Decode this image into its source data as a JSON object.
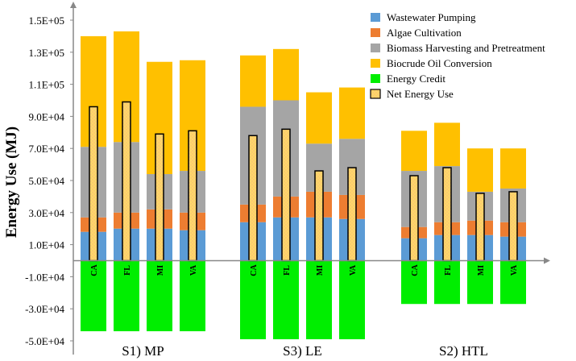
{
  "chart_data": {
    "type": "bar",
    "ylabel": "Energy Use (MJ)",
    "ylim": [
      -50000,
      150000
    ],
    "y_ticks": [
      "-5.0E+04",
      "-3.0E+04",
      "-1.0E+04",
      "1.0E+04",
      "3.0E+04",
      "5.0E+04",
      "7.0E+04",
      "9.0E+04",
      "1.1E+05",
      "1.3E+05",
      "1.5E+05"
    ],
    "tick_values": [
      -50000,
      -30000,
      -10000,
      10000,
      30000,
      50000,
      70000,
      90000,
      110000,
      130000,
      150000
    ],
    "stacked": true,
    "legend_position": "top-right",
    "colors": {
      "wastewater": "#5b9bd5",
      "algae": "#ed7d31",
      "harvest": "#a5a5a5",
      "biocrude": "#ffc000",
      "credit": "#00ee00",
      "net_fill": "#ffd966",
      "net_border": "#000000"
    },
    "legend": [
      {
        "key": "wastewater",
        "label": "Wastewater Pumping"
      },
      {
        "key": "algae",
        "label": "Algae Cultivation"
      },
      {
        "key": "harvest",
        "label": "Biomass Harvesting and Pretreatment"
      },
      {
        "key": "biocrude",
        "label": "Biocrude Oil Conversion"
      },
      {
        "key": "credit",
        "label": "Energy Credit"
      },
      {
        "key": "net",
        "label": "Net Energy Use"
      }
    ],
    "groups": [
      {
        "label": "S1) MP",
        "bars": [
          {
            "site": "CA",
            "wastewater": 18000,
            "algae": 9000,
            "harvest": 44000,
            "biocrude": 69000,
            "credit": -44000,
            "net": 96000
          },
          {
            "site": "FL",
            "wastewater": 20000,
            "algae": 10000,
            "harvest": 44000,
            "biocrude": 69000,
            "credit": -44000,
            "net": 99000
          },
          {
            "site": "MI",
            "wastewater": 20000,
            "algae": 12000,
            "harvest": 22000,
            "biocrude": 70000,
            "credit": -44000,
            "net": 79000
          },
          {
            "site": "VA",
            "wastewater": 19000,
            "algae": 11000,
            "harvest": 26000,
            "biocrude": 69000,
            "credit": -44000,
            "net": 81000
          }
        ]
      },
      {
        "label": "S3) LE",
        "bars": [
          {
            "site": "CA",
            "wastewater": 24000,
            "algae": 11000,
            "harvest": 61000,
            "biocrude": 32000,
            "credit": -49000,
            "net": 78000
          },
          {
            "site": "FL",
            "wastewater": 27000,
            "algae": 13000,
            "harvest": 60000,
            "biocrude": 32000,
            "credit": -49000,
            "net": 82000
          },
          {
            "site": "MI",
            "wastewater": 27000,
            "algae": 16000,
            "harvest": 30000,
            "biocrude": 32000,
            "credit": -49000,
            "net": 56000
          },
          {
            "site": "VA",
            "wastewater": 26000,
            "algae": 15000,
            "harvest": 35000,
            "biocrude": 32000,
            "credit": -49000,
            "net": 58000
          }
        ]
      },
      {
        "label": "S2) HTL",
        "bars": [
          {
            "site": "CA",
            "wastewater": 14000,
            "algae": 7000,
            "harvest": 35000,
            "biocrude": 25000,
            "credit": -27000,
            "net": 53000
          },
          {
            "site": "FL",
            "wastewater": 16000,
            "algae": 8000,
            "harvest": 35000,
            "biocrude": 27000,
            "credit": -27000,
            "net": 58000
          },
          {
            "site": "MI",
            "wastewater": 16000,
            "algae": 9000,
            "harvest": 18000,
            "biocrude": 27000,
            "credit": -27000,
            "net": 42000
          },
          {
            "site": "VA",
            "wastewater": 15000,
            "algae": 9000,
            "harvest": 21000,
            "biocrude": 25000,
            "credit": -27000,
            "net": 43000
          }
        ]
      }
    ]
  }
}
